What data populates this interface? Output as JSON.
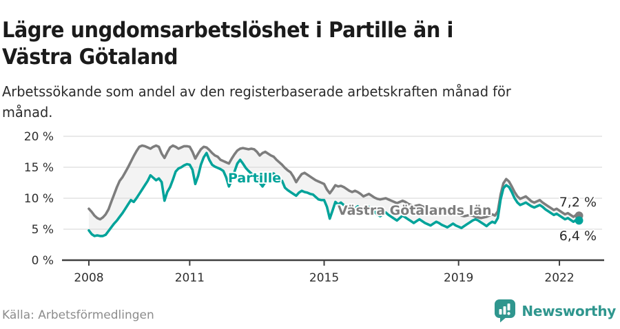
{
  "header": {
    "title_lines": [
      "Lägre ungdomsarbetslöshet i Partille än i",
      "Västra Götaland"
    ],
    "subtitle_lines": [
      "Arbetssökande som andel av den registerbaserade arbetskraften månad för",
      "månad."
    ]
  },
  "footer": {
    "source": "Källa: Arbetsförmedlingen",
    "brand": "Newsworthy"
  },
  "colors": {
    "partille_teal": "#00a39a",
    "vastra_gray": "#7d7d7d",
    "area_fill": "#f3f3f3",
    "gridline": "#dcdcdc",
    "axis": "#3f3f3f",
    "brand_teal": "#2f968e"
  },
  "chart_data": {
    "type": "line",
    "title": "Lägre ungdomsarbetslöshet i Partille än i Västra Götaland",
    "xlabel": "",
    "ylabel": "",
    "ylim": [
      0,
      20
    ],
    "grid": true,
    "legend_position": "inline-labels",
    "start_year": 2008,
    "frequency": "monthly",
    "y_axis": {
      "ticks": [
        {
          "label": "20 %",
          "value": 20
        },
        {
          "label": "15 %",
          "value": 15
        },
        {
          "label": "10 %",
          "value": 10
        },
        {
          "label": "5 %",
          "value": 5
        },
        {
          "label": "0 %",
          "value": 0
        }
      ]
    },
    "x_axis": {
      "ticks": [
        {
          "label": "2008",
          "year": 2008
        },
        {
          "label": "2011",
          "year": 2011
        },
        {
          "label": "2015",
          "year": 2015
        },
        {
          "label": "2019",
          "year": 2019
        },
        {
          "label": "2022",
          "year": 2022
        }
      ]
    },
    "series": [
      {
        "name": "Västra Götalands län",
        "color": "#7d7d7d",
        "end_label": "7,2 %",
        "values": [
          8.3,
          7.8,
          7.2,
          6.8,
          6.6,
          6.9,
          7.4,
          8.2,
          9.4,
          10.6,
          11.8,
          12.8,
          13.4,
          14.2,
          15.0,
          15.9,
          16.8,
          17.6,
          18.3,
          18.5,
          18.4,
          18.2,
          18.0,
          18.3,
          18.5,
          18.3,
          17.2,
          16.5,
          17.4,
          18.2,
          18.5,
          18.3,
          18.0,
          18.2,
          18.4,
          18.4,
          18.3,
          17.5,
          16.4,
          17.2,
          17.9,
          18.3,
          18.2,
          17.8,
          17.3,
          16.9,
          16.7,
          16.2,
          16.0,
          15.8,
          15.6,
          16.4,
          17.1,
          17.7,
          18.0,
          18.1,
          18.0,
          17.9,
          18.0,
          17.9,
          17.5,
          16.9,
          17.3,
          17.5,
          17.2,
          16.9,
          16.7,
          16.2,
          15.8,
          15.4,
          14.9,
          14.5,
          14.2,
          13.5,
          12.6,
          13.3,
          13.9,
          14.1,
          13.8,
          13.5,
          13.2,
          12.9,
          12.7,
          12.5,
          12.3,
          11.4,
          10.8,
          11.4,
          12.1,
          11.9,
          12.0,
          11.8,
          11.5,
          11.2,
          11.0,
          11.2,
          11.0,
          10.7,
          10.3,
          10.5,
          10.7,
          10.4,
          10.1,
          9.9,
          9.8,
          9.9,
          10.0,
          9.8,
          9.6,
          9.4,
          9.2,
          9.4,
          9.6,
          9.4,
          9.1,
          8.9,
          8.7,
          8.8,
          8.9,
          8.7,
          8.5,
          8.3,
          8.1,
          8.2,
          8.4,
          8.2,
          8.0,
          7.8,
          7.6,
          7.7,
          7.8,
          7.6,
          7.4,
          7.2,
          7.1,
          7.2,
          7.3,
          7.2,
          7.0,
          6.9,
          6.8,
          6.9,
          7.0,
          7.2,
          7.4,
          7.2,
          7.9,
          10.6,
          12.4,
          13.1,
          12.7,
          11.9,
          11.0,
          10.3,
          9.9,
          10.1,
          10.3,
          9.9,
          9.5,
          9.3,
          9.5,
          9.7,
          9.3,
          9.0,
          8.7,
          8.4,
          8.1,
          8.3,
          8.0,
          7.7,
          7.4,
          7.6,
          7.3,
          7.0,
          7.3,
          7.2
        ]
      },
      {
        "name": "Partille",
        "color": "#00a39a",
        "end_label": "6,4 %",
        "values": [
          4.8,
          4.2,
          3.9,
          4.0,
          3.9,
          3.9,
          4.1,
          4.7,
          5.3,
          5.9,
          6.4,
          7.0,
          7.6,
          8.3,
          9.0,
          9.7,
          9.4,
          10.0,
          10.7,
          11.4,
          12.1,
          12.8,
          13.7,
          13.3,
          12.9,
          13.2,
          12.6,
          9.6,
          11.0,
          11.8,
          13.0,
          14.3,
          14.8,
          15.0,
          15.3,
          15.5,
          15.4,
          14.6,
          12.3,
          13.6,
          15.4,
          16.6,
          17.3,
          16.2,
          15.4,
          15.1,
          14.9,
          14.7,
          14.4,
          13.4,
          11.9,
          12.9,
          14.3,
          15.6,
          16.2,
          15.6,
          14.9,
          14.4,
          14.0,
          13.7,
          13.4,
          12.5,
          11.9,
          12.6,
          13.3,
          13.9,
          14.0,
          13.5,
          13.0,
          12.8,
          11.7,
          11.3,
          11.0,
          10.7,
          10.4,
          10.9,
          11.2,
          11.0,
          10.9,
          10.7,
          10.6,
          10.2,
          9.8,
          9.7,
          9.7,
          8.6,
          6.7,
          8.0,
          9.4,
          9.0,
          9.3,
          8.9,
          8.5,
          8.2,
          7.9,
          8.3,
          8.7,
          8.3,
          7.8,
          8.2,
          8.6,
          8.2,
          7.8,
          7.4,
          7.1,
          7.4,
          7.7,
          7.3,
          7.0,
          6.7,
          6.4,
          6.8,
          7.2,
          6.9,
          6.6,
          6.3,
          6.0,
          6.3,
          6.6,
          6.3,
          6.0,
          5.8,
          5.6,
          5.9,
          6.2,
          6.0,
          5.7,
          5.5,
          5.3,
          5.6,
          5.9,
          5.6,
          5.4,
          5.2,
          5.5,
          5.8,
          6.1,
          6.4,
          6.6,
          6.4,
          6.1,
          5.8,
          5.5,
          5.9,
          6.2,
          6.0,
          6.8,
          9.8,
          11.6,
          12.1,
          11.8,
          11.0,
          10.0,
          9.3,
          8.9,
          9.1,
          9.3,
          9.0,
          8.7,
          8.5,
          8.7,
          8.9,
          8.6,
          8.2,
          7.9,
          7.6,
          7.3,
          7.5,
          7.2,
          6.9,
          6.6,
          6.8,
          6.5,
          6.2,
          6.5,
          6.4
        ]
      }
    ]
  }
}
